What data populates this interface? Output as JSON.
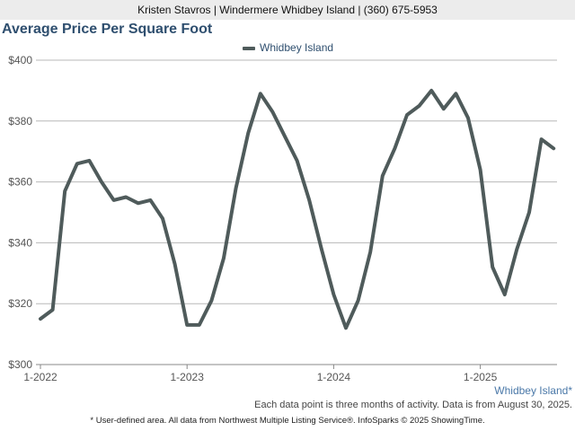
{
  "header": {
    "agent_line": "Kristen Stavros | Windermere Whidbey Island | (360) 675-5953"
  },
  "chart_data": {
    "type": "line",
    "title": "Average Price Per Square Foot",
    "xlabel": "",
    "ylabel": "",
    "ylim": [
      300,
      400
    ],
    "y_ticks": [
      300,
      320,
      340,
      360,
      380,
      400
    ],
    "y_tick_labels": [
      "$300",
      "$320",
      "$340",
      "$360",
      "$380",
      "$400"
    ],
    "x_tick_labels": [
      "1-2022",
      "1-2023",
      "1-2024",
      "1-2025"
    ],
    "x_tick_index": [
      0,
      12,
      24,
      36
    ],
    "grid": true,
    "legend_position": "top-center",
    "series": [
      {
        "name": "Whidbey Island",
        "color": "#4f5b5b",
        "values": [
          315,
          318,
          357,
          366,
          367,
          360,
          354,
          355,
          353,
          354,
          348,
          333,
          313,
          313,
          321,
          335,
          358,
          376,
          389,
          383,
          375,
          367,
          354,
          338,
          323,
          312,
          321,
          337,
          362,
          371,
          382,
          385,
          390,
          384,
          389,
          381,
          364,
          332,
          323,
          338,
          350,
          374,
          371
        ]
      }
    ]
  },
  "area_label": "Whidbey Island*",
  "note": "Each data point is three months of activity. Data is from August 30, 2025.",
  "footer": "* User-defined area. All data from Northwest Multiple Listing Service®. InfoSparks © 2025 ShowingTime."
}
